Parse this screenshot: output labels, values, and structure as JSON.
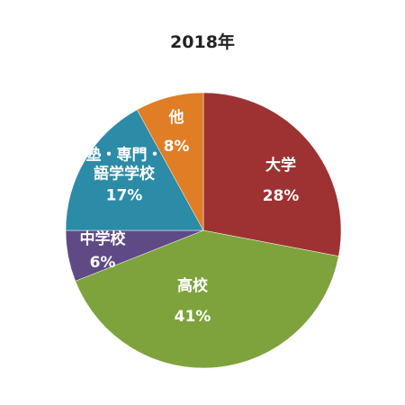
{
  "chart_data": {
    "type": "pie",
    "title": "2018年",
    "slices": [
      {
        "label": [
          "大学"
        ],
        "value": 28,
        "value_label": "28%",
        "color": "#9e3232"
      },
      {
        "label": [
          "高校"
        ],
        "value": 41,
        "value_label": "41%",
        "color": "#7ea33c"
      },
      {
        "label": [
          "中学校"
        ],
        "value": 6,
        "value_label": "6%",
        "color": "#604a86"
      },
      {
        "label": [
          "塾・専門・",
          "語学学校"
        ],
        "value": 17,
        "value_label": "17%",
        "color": "#2c8ba6"
      },
      {
        "label": [
          "他"
        ],
        "value": 8,
        "value_label": "8%",
        "color": "#e07d25"
      }
    ]
  }
}
